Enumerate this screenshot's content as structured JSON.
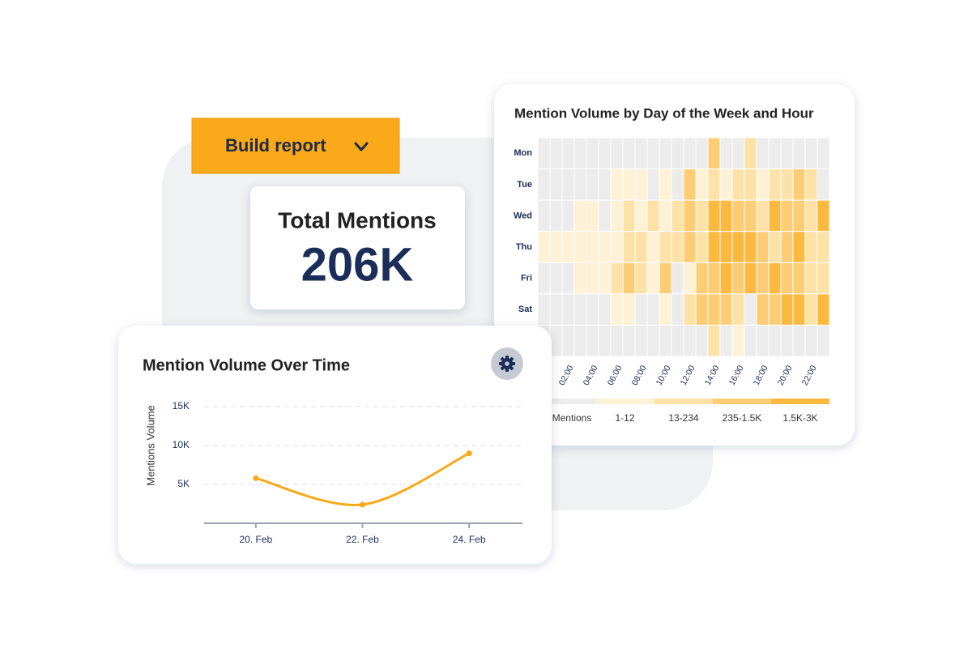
{
  "button": {
    "label": "Build report"
  },
  "summary": {
    "title": "Total Mentions",
    "value": "206K"
  },
  "chart_data": [
    {
      "type": "heatmap",
      "title": "Mention Volume by Day of the Week and Hour",
      "y_categories": [
        "Mon",
        "Tue",
        "Wed",
        "Thu",
        "Fri",
        "Sat",
        null
      ],
      "x_categories": [
        null,
        null,
        "02:00",
        null,
        "04:00",
        null,
        "06:00",
        null,
        "08:00",
        null,
        "10:00",
        null,
        "12:00",
        null,
        "14:00",
        null,
        "16:00",
        null,
        "18:00",
        null,
        "20:00",
        null,
        "22:00",
        null
      ],
      "values": [
        [
          0,
          0,
          0,
          0,
          0,
          0,
          0,
          0,
          0,
          0,
          0,
          0,
          0,
          0,
          800,
          0,
          0,
          120,
          0,
          0,
          0,
          0,
          0,
          0
        ],
        [
          0,
          0,
          0,
          0,
          0,
          0,
          6,
          6,
          6,
          0,
          6,
          0,
          800,
          6,
          120,
          6,
          120,
          120,
          6,
          120,
          120,
          800,
          120,
          0
        ],
        [
          0,
          0,
          0,
          6,
          6,
          0,
          6,
          120,
          6,
          120,
          6,
          120,
          800,
          120,
          2000,
          2000,
          800,
          800,
          120,
          2000,
          800,
          800,
          120,
          2000
        ],
        [
          6,
          6,
          6,
          6,
          6,
          6,
          6,
          120,
          120,
          6,
          120,
          120,
          800,
          120,
          2000,
          2000,
          2000,
          2000,
          800,
          120,
          800,
          2000,
          120,
          120
        ],
        [
          0,
          0,
          0,
          6,
          6,
          6,
          120,
          800,
          120,
          6,
          800,
          0,
          6,
          800,
          800,
          2000,
          800,
          2000,
          800,
          2000,
          800,
          800,
          120,
          120
        ],
        [
          0,
          0,
          0,
          0,
          0,
          0,
          6,
          6,
          0,
          0,
          6,
          0,
          120,
          800,
          800,
          800,
          120,
          0,
          800,
          800,
          2000,
          2000,
          120,
          2000
        ],
        [
          0,
          0,
          0,
          0,
          0,
          0,
          0,
          0,
          0,
          0,
          0,
          0,
          0,
          0,
          120,
          0,
          6,
          0,
          0,
          0,
          0,
          0,
          0,
          0
        ]
      ],
      "legend": [
        {
          "label": "Mentions",
          "color": "#ececec",
          "min": 0,
          "max": 0
        },
        {
          "label": "1-12",
          "color": "#fdf1d6",
          "min": 1,
          "max": 12
        },
        {
          "label": "13-234",
          "color": "#fde2a8",
          "min": 13,
          "max": 234
        },
        {
          "label": "235-1.5K",
          "color": "#fccd74",
          "min": 235,
          "max": 1500
        },
        {
          "label": "1.5K-3K",
          "color": "#fbb940",
          "min": 1501,
          "max": 3000
        }
      ]
    },
    {
      "type": "line",
      "title": "Mention Volume Over Time",
      "y_label": "Mentions Volume",
      "categories": [
        "20. Feb",
        "22. Feb",
        "24. Feb"
      ],
      "values": [
        5800,
        2400,
        9000
      ],
      "color": "#f9a91a",
      "ylim": [
        0,
        16000
      ],
      "yticks": [
        {
          "value": 5000,
          "label": "5K"
        },
        {
          "value": 10000,
          "label": "10K"
        },
        {
          "value": 15000,
          "label": "15K"
        }
      ],
      "grid": true
    }
  ]
}
